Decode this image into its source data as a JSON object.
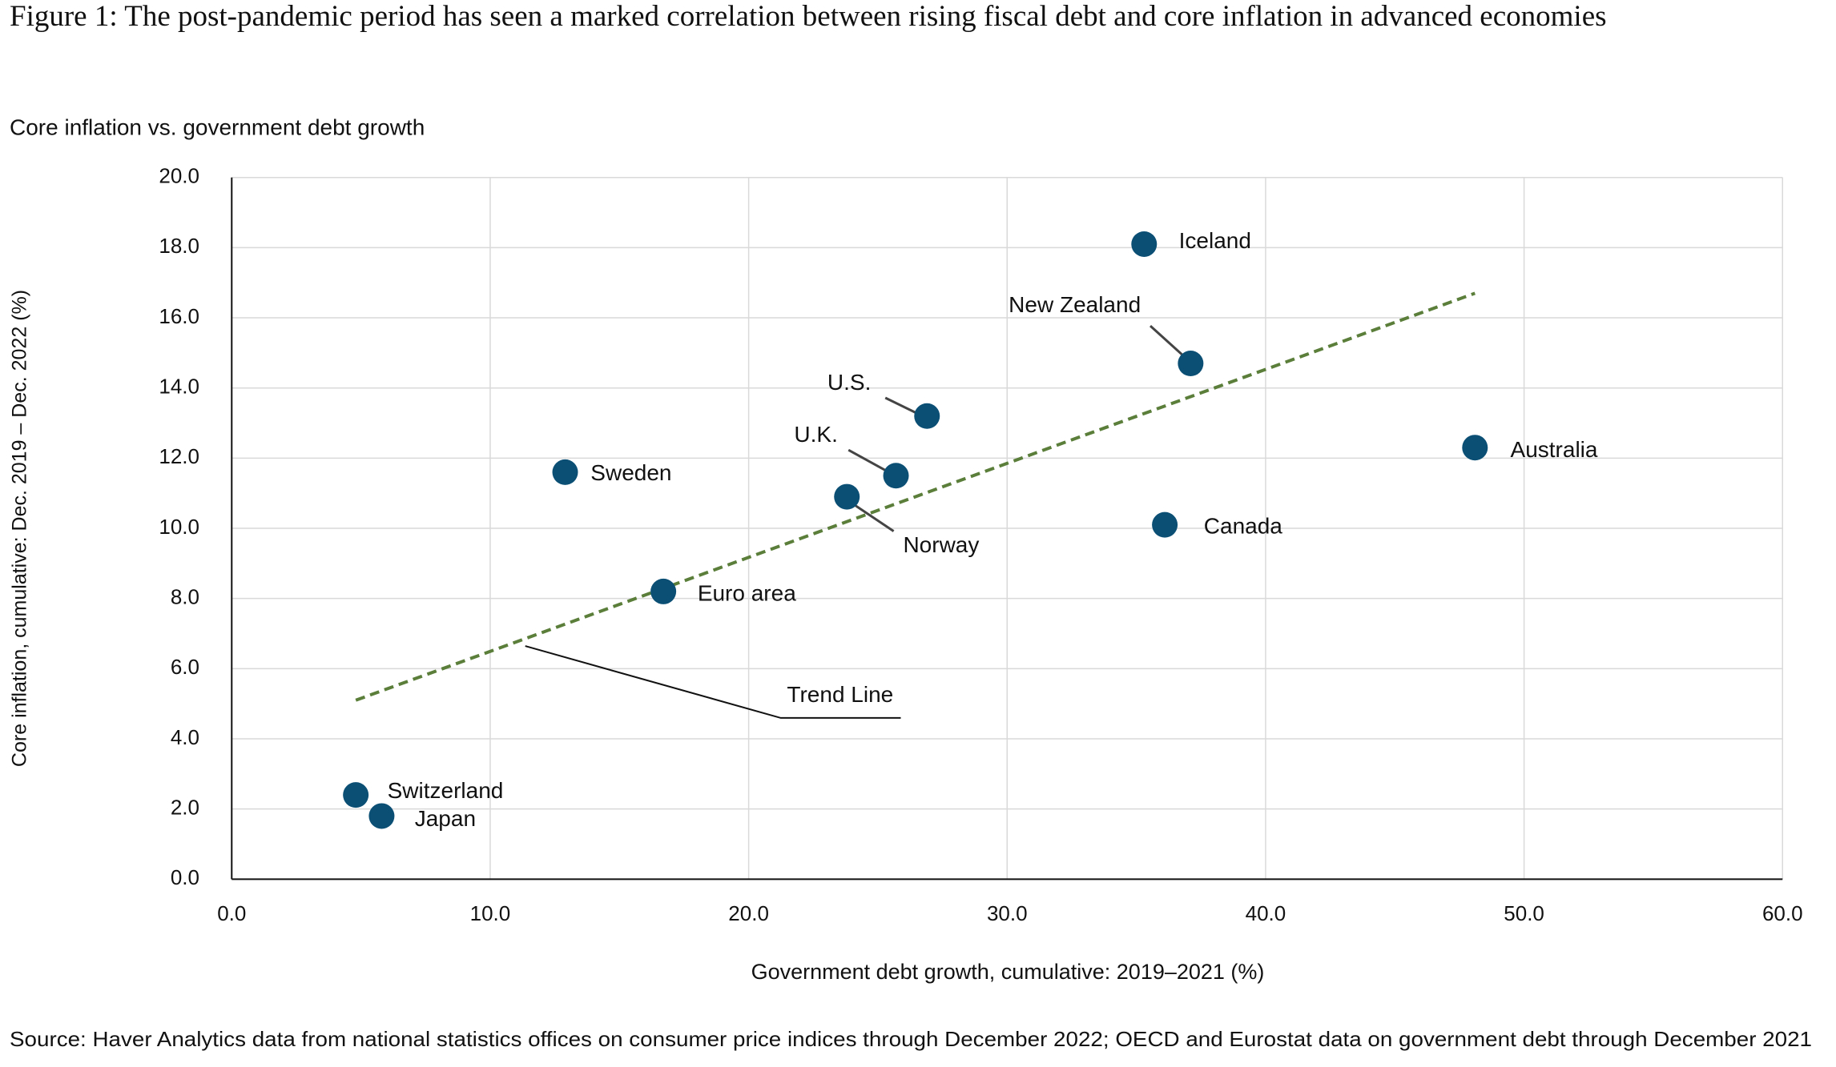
{
  "chart_data": {
    "type": "scatter",
    "title": "Figure 1: The post-pandemic period has seen a marked correlation between rising fiscal debt and core inflation in advanced economies",
    "subtitle": "Core inflation vs. government debt growth",
    "x_label": "Government debt growth, cumulative: 2019–2021 (%)",
    "y_label": "Core inflation, cumulative: Dec. 2019 – Dec. 2022 (%)",
    "source": "Source: Haver Analytics data from national statistics offices on consumer price indices through December 2022; OECD and Eurostat data on government debt through December 2021",
    "labels": [
      "Iceland",
      "New Zealand",
      "U.S.",
      "Australia",
      "Sweden",
      "U.K.",
      "Norway",
      "Canada",
      "Euro area",
      "Switzerland",
      "Japan"
    ],
    "x": [
      35.3,
      37.1,
      26.9,
      48.1,
      12.9,
      25.7,
      23.8,
      36.1,
      16.7,
      4.8,
      5.8
    ],
    "values": [
      18.1,
      14.7,
      13.2,
      12.3,
      11.6,
      11.5,
      10.9,
      10.1,
      8.2,
      2.4,
      1.8
    ],
    "color": "#0b4f75",
    "trend": {
      "name": "Trend Line",
      "x": [
        4.8,
        48.1
      ],
      "values": [
        5.1,
        16.7
      ],
      "color": "#5b7f3b"
    },
    "xlim": [
      0,
      60
    ],
    "ylim": [
      0,
      20
    ],
    "xticks": [
      {
        "value": 0,
        "label": "0.0"
      },
      {
        "value": 10,
        "label": "10.0"
      },
      {
        "value": 20,
        "label": "20.0"
      },
      {
        "value": 30,
        "label": "30.0"
      },
      {
        "value": 40,
        "label": "40.0"
      },
      {
        "value": 50,
        "label": "50.0"
      },
      {
        "value": 60,
        "label": "60.0"
      }
    ],
    "yticks": [
      {
        "value": 0,
        "label": "0.0"
      },
      {
        "value": 2,
        "label": "2.0"
      },
      {
        "value": 4,
        "label": "4.0"
      },
      {
        "value": 6,
        "label": "6.0"
      },
      {
        "value": 8,
        "label": "8.0"
      },
      {
        "value": 10,
        "label": "10.0"
      },
      {
        "value": 12,
        "label": "12.0"
      },
      {
        "value": 14,
        "label": "14.0"
      },
      {
        "value": 16,
        "label": "16.0"
      },
      {
        "value": 18,
        "label": "18.0"
      },
      {
        "value": 20,
        "label": "20.0"
      }
    ],
    "grid": true
  }
}
